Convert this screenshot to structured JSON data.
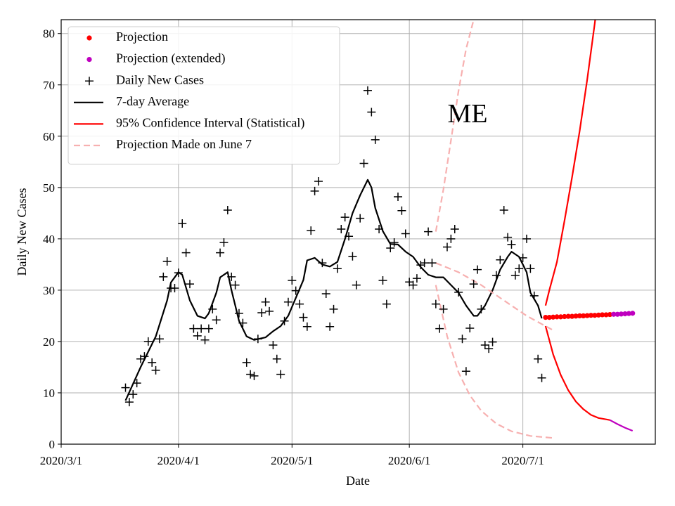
{
  "chart_data": {
    "type": "line",
    "xlabel": "Date",
    "ylabel": "Daily New Cases",
    "annotation": "ME",
    "xlim": [
      "2020/3/1",
      "2020/8/5"
    ],
    "xticks": [
      "2020/3/1",
      "2020/4/1",
      "2020/5/1",
      "2020/6/1",
      "2020/7/1"
    ],
    "ylim": [
      0,
      82.7
    ],
    "yticks": [
      0,
      10,
      20,
      30,
      40,
      50,
      60,
      70,
      80
    ],
    "grid": true,
    "legend": "upper left",
    "series": [
      {
        "name": "Projection",
        "style": "dots",
        "color": "#ff0000",
        "x": [
          "2020/7/7",
          "2020/7/8",
          "2020/7/9",
          "2020/7/10",
          "2020/7/11",
          "2020/7/12",
          "2020/7/13",
          "2020/7/14",
          "2020/7/15",
          "2020/7/16",
          "2020/7/17",
          "2020/7/18",
          "2020/7/19",
          "2020/7/20",
          "2020/7/21",
          "2020/7/22",
          "2020/7/23",
          "2020/7/24"
        ],
        "values": [
          24.7,
          24.7,
          24.75,
          24.8,
          24.8,
          24.85,
          24.9,
          24.9,
          24.95,
          25.0,
          25.0,
          25.05,
          25.1,
          25.1,
          25.15,
          25.2,
          25.2,
          25.25
        ]
      },
      {
        "name": "Projection (extended)",
        "style": "dots",
        "color": "#bf00bf",
        "x": [
          "2020/7/25",
          "2020/7/26",
          "2020/7/27",
          "2020/7/28",
          "2020/7/29",
          "2020/7/30"
        ],
        "values": [
          25.3,
          25.3,
          25.35,
          25.4,
          25.45,
          25.5
        ]
      },
      {
        "name": "Daily New Cases",
        "style": "plus",
        "color": "#000000",
        "x": [
          "2020/3/18",
          "2020/3/19",
          "2020/3/20",
          "2020/3/21",
          "2020/3/22",
          "2020/3/23",
          "2020/3/24",
          "2020/3/25",
          "2020/3/26",
          "2020/3/27",
          "2020/3/28",
          "2020/3/29",
          "2020/3/30",
          "2020/3/31",
          "2020/4/1",
          "2020/4/2",
          "2020/4/3",
          "2020/4/4",
          "2020/4/5",
          "2020/4/6",
          "2020/4/7",
          "2020/4/8",
          "2020/4/9",
          "2020/4/10",
          "2020/4/11",
          "2020/4/12",
          "2020/4/13",
          "2020/4/14",
          "2020/4/15",
          "2020/4/16",
          "2020/4/17",
          "2020/4/18",
          "2020/4/19",
          "2020/4/20",
          "2020/4/21",
          "2020/4/22",
          "2020/4/23",
          "2020/4/24",
          "2020/4/25",
          "2020/4/26",
          "2020/4/27",
          "2020/4/28",
          "2020/4/29",
          "2020/4/30",
          "2020/5/1",
          "2020/5/2",
          "2020/5/3",
          "2020/5/4",
          "2020/5/5",
          "2020/5/6",
          "2020/5/7",
          "2020/5/8",
          "2020/5/9",
          "2020/5/10",
          "2020/5/11",
          "2020/5/12",
          "2020/5/13",
          "2020/5/14",
          "2020/5/15",
          "2020/5/16",
          "2020/5/17",
          "2020/5/18",
          "2020/5/19",
          "2020/5/20",
          "2020/5/21",
          "2020/5/22",
          "2020/5/23",
          "2020/5/24",
          "2020/5/25",
          "2020/5/26",
          "2020/5/27",
          "2020/5/28",
          "2020/5/29",
          "2020/5/30",
          "2020/5/31",
          "2020/6/1",
          "2020/6/2",
          "2020/6/3",
          "2020/6/4",
          "2020/6/5",
          "2020/6/6",
          "2020/6/7",
          "2020/6/8",
          "2020/6/9",
          "2020/6/10",
          "2020/6/11",
          "2020/6/12",
          "2020/6/13",
          "2020/6/14",
          "2020/6/15",
          "2020/6/16",
          "2020/6/17",
          "2020/6/18",
          "2020/6/19",
          "2020/6/20",
          "2020/6/21",
          "2020/6/22",
          "2020/6/23",
          "2020/6/24",
          "2020/6/25",
          "2020/6/26",
          "2020/6/27",
          "2020/6/28",
          "2020/6/29",
          "2020/6/30",
          "2020/7/1",
          "2020/7/2",
          "2020/7/3",
          "2020/7/4",
          "2020/7/5",
          "2020/7/6"
        ],
        "values": [
          11.0,
          8.2,
          9.7,
          11.9,
          16.6,
          17.1,
          20.0,
          15.9,
          14.4,
          20.5,
          32.6,
          35.6,
          30.4,
          30.4,
          33.4,
          43.0,
          37.3,
          31.2,
          22.5,
          21.1,
          22.5,
          20.3,
          22.5,
          26.3,
          24.2,
          37.3,
          39.3,
          45.6,
          32.6,
          31.0,
          25.5,
          23.6,
          15.9,
          13.6,
          13.3,
          20.5,
          25.6,
          27.7,
          25.9,
          19.3,
          16.6,
          13.6,
          24.0,
          27.7,
          31.9,
          29.9,
          27.3,
          24.7,
          22.9,
          41.6,
          49.3,
          51.2,
          35.3,
          29.3,
          22.9,
          26.3,
          34.2,
          41.9,
          44.2,
          40.5,
          36.6,
          31.0,
          44.0,
          54.7,
          68.9,
          64.7,
          59.3,
          41.9,
          31.9,
          27.3,
          38.2,
          39.3,
          48.2,
          45.5,
          41.0,
          31.6,
          31.0,
          32.3,
          34.9,
          35.3,
          41.4,
          35.3,
          27.3,
          22.5,
          26.3,
          38.4,
          40.0,
          41.9,
          29.6,
          20.5,
          14.2,
          22.6,
          31.2,
          34.0,
          26.3,
          19.3,
          18.6,
          19.9,
          32.9,
          35.9,
          45.6,
          40.3,
          38.9,
          32.9,
          34.2,
          36.3,
          40.0,
          34.2,
          28.9,
          16.6,
          12.9
        ]
      },
      {
        "name": "7-day Average",
        "style": "line",
        "color": "#000000",
        "x": [
          "2020/3/18",
          "2020/3/22",
          "2020/3/26",
          "2020/3/29",
          "2020/3/30",
          "2020/4/1",
          "2020/4/2",
          "2020/4/4",
          "2020/4/6",
          "2020/4/8",
          "2020/4/9",
          "2020/4/11",
          "2020/4/12",
          "2020/4/14",
          "2020/4/15",
          "2020/4/17",
          "2020/4/19",
          "2020/4/21",
          "2020/4/24",
          "2020/4/26",
          "2020/4/28",
          "2020/4/30",
          "2020/5/2",
          "2020/5/4",
          "2020/5/5",
          "2020/5/7",
          "2020/5/9",
          "2020/5/11",
          "2020/5/13",
          "2020/5/15",
          "2020/5/17",
          "2020/5/19",
          "2020/5/21",
          "2020/5/22",
          "2020/5/23",
          "2020/5/25",
          "2020/5/27",
          "2020/5/29",
          "2020/5/31",
          "2020/6/2",
          "2020/6/4",
          "2020/6/6",
          "2020/6/8",
          "2020/6/10",
          "2020/6/12",
          "2020/6/14",
          "2020/6/16",
          "2020/6/18",
          "2020/6/19",
          "2020/6/21",
          "2020/6/23",
          "2020/6/25",
          "2020/6/27",
          "2020/6/28",
          "2020/6/30",
          "2020/7/2",
          "2020/7/3",
          "2020/7/5",
          "2020/7/6"
        ],
        "values": [
          8.5,
          15,
          21,
          28,
          31.5,
          33.5,
          33,
          28,
          25,
          24.5,
          25.5,
          29.5,
          32.5,
          33.5,
          30,
          24,
          21,
          20.3,
          20.8,
          22,
          23,
          25,
          28.5,
          32,
          35.8,
          36.3,
          35,
          34.6,
          35.5,
          40,
          45,
          48.5,
          51.5,
          50,
          46,
          41.5,
          39,
          38.9,
          37.5,
          36.5,
          34.5,
          33,
          32.5,
          32.5,
          31,
          29.5,
          27,
          25,
          25,
          27,
          30,
          34,
          36.5,
          37.5,
          36.5,
          33.5,
          29.5,
          27,
          24.5
        ]
      },
      {
        "name": "95% Confidence Interval (Statistical)",
        "style": "line",
        "color": "#ff0000",
        "x": [
          "2020/7/7",
          "2020/7/8",
          "2020/7/10",
          "2020/7/12",
          "2020/7/14",
          "2020/7/16",
          "2020/7/18",
          "2020/7/20",
          "2020/7/22"
        ],
        "values": [
          27,
          30,
          35.5,
          43.5,
          52,
          61,
          71,
          82,
          94
        ]
      },
      {
        "name": "Projection Made on June 7",
        "style": "dashed",
        "color": "#f7b0b0",
        "x": [
          "2020/6/8",
          "2020/6/10",
          "2020/6/12",
          "2020/6/14",
          "2020/6/16",
          "2020/6/18"
        ],
        "values": [
          41.4,
          49.6,
          59.2,
          68.8,
          77,
          82.7
        ]
      },
      {
        "style": "line",
        "color": "#ff0000",
        "x": [
          "2020/7/7",
          "2020/7/9",
          "2020/7/11",
          "2020/7/13",
          "2020/7/15",
          "2020/7/17",
          "2020/7/19",
          "2020/7/21",
          "2020/7/24"
        ],
        "values": [
          23,
          17.5,
          13.5,
          10.5,
          8.3,
          6.8,
          5.7,
          5.1,
          4.7
        ]
      },
      {
        "style": "line",
        "color": "#bf00bf",
        "x": [
          "2020/7/24",
          "2020/7/26",
          "2020/7/28",
          "2020/7/30"
        ],
        "values": [
          4.7,
          3.9,
          3.2,
          2.6
        ]
      },
      {
        "style": "dashed",
        "color": "#f7b0b0",
        "x": [
          "2020/6/8",
          "2020/6/14",
          "2020/6/20",
          "2020/6/26",
          "2020/7/2",
          "2020/7/9"
        ],
        "values": [
          35.3,
          33.5,
          31,
          28,
          25,
          22.2
        ]
      },
      {
        "style": "dashed",
        "color": "#f7b0b0",
        "x": [
          "2020/6/8",
          "2020/6/11",
          "2020/6/14",
          "2020/6/17",
          "2020/6/20",
          "2020/6/24",
          "2020/6/28",
          "2020/7/3",
          "2020/7/9"
        ],
        "values": [
          31,
          21,
          14,
          9.5,
          6.5,
          4,
          2.5,
          1.6,
          1.2
        ]
      }
    ]
  }
}
